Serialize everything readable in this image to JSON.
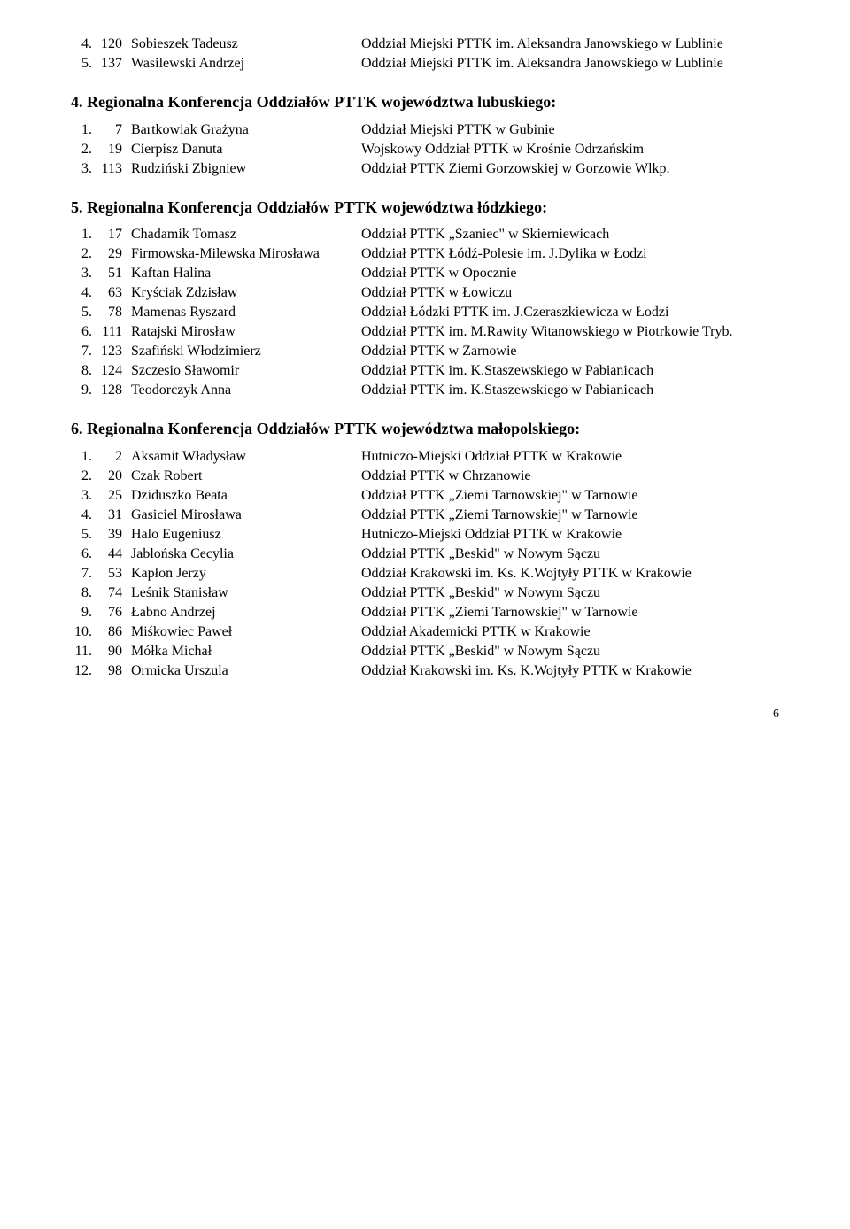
{
  "topEntries": [
    {
      "num": "4.",
      "id": "120",
      "name": "Sobieszek Tadeusz",
      "org": "Oddział Miejski PTTK im. Aleksandra Janowskiego w Lublinie"
    },
    {
      "num": "5.",
      "id": "137",
      "name": "Wasilewski Andrzej",
      "org": "Oddział Miejski PTTK im. Aleksandra Janowskiego w Lublinie"
    }
  ],
  "section4": {
    "heading": "4. Regionalna Konferencja Oddziałów PTTK województwa lubuskiego:",
    "entries": [
      {
        "num": "1.",
        "id": "7",
        "name": "Bartkowiak Grażyna",
        "org": "Oddział Miejski PTTK w Gubinie"
      },
      {
        "num": "2.",
        "id": "19",
        "name": "Cierpisz Danuta",
        "org": "Wojskowy Oddział PTTK w Krośnie Odrzańskim"
      },
      {
        "num": "3.",
        "id": "113",
        "name": "Rudziński Zbigniew",
        "org": "Oddział PTTK Ziemi Gorzowskiej w Gorzowie Wlkp."
      }
    ]
  },
  "section5": {
    "heading": "5. Regionalna Konferencja Oddziałów PTTK województwa łódzkiego:",
    "entries": [
      {
        "num": "1.",
        "id": "17",
        "name": "Chadamik Tomasz",
        "org": "Oddział PTTK „Szaniec\" w Skierniewicach"
      },
      {
        "num": "2.",
        "id": "29",
        "name": "Firmowska-Milewska Mirosława",
        "org": "Oddział PTTK Łódź-Polesie im. J.Dylika w Łodzi"
      },
      {
        "num": "3.",
        "id": "51",
        "name": "Kaftan Halina",
        "org": "Oddział PTTK w Opocznie"
      },
      {
        "num": "4.",
        "id": "63",
        "name": "Kryściak Zdzisław",
        "org": "Oddział PTTK w Łowiczu"
      },
      {
        "num": "5.",
        "id": "78",
        "name": "Mamenas Ryszard",
        "org": "Oddział Łódzki PTTK im. J.Czeraszkiewicza w Łodzi"
      },
      {
        "num": "6.",
        "id": "111",
        "name": "Ratajski Mirosław",
        "org": "Oddział PTTK im. M.Rawity Witanowskiego w Piotrkowie Tryb."
      },
      {
        "num": "7.",
        "id": "123",
        "name": "Szafiński Włodzimierz",
        "org": "Oddział PTTK w Żarnowie"
      },
      {
        "num": "8.",
        "id": "124",
        "name": "Szczesio Sławomir",
        "org": "Oddział PTTK im. K.Staszewskiego w Pabianicach"
      },
      {
        "num": "9.",
        "id": "128",
        "name": "Teodorczyk Anna",
        "org": "Oddział PTTK im. K.Staszewskiego w Pabianicach"
      }
    ]
  },
  "section6": {
    "heading": "6. Regionalna Konferencja Oddziałów PTTK województwa małopolskiego:",
    "entries": [
      {
        "num": "1.",
        "id": "2",
        "name": "Aksamit Władysław",
        "org": "Hutniczo-Miejski Oddział PTTK w Krakowie"
      },
      {
        "num": "2.",
        "id": "20",
        "name": "Czak Robert",
        "org": "Oddział PTTK w Chrzanowie"
      },
      {
        "num": "3.",
        "id": "25",
        "name": "Dziduszko Beata",
        "org": "Oddział PTTK „Ziemi Tarnowskiej\" w Tarnowie"
      },
      {
        "num": "4.",
        "id": "31",
        "name": "Gasiciel Mirosława",
        "org": "Oddział PTTK „Ziemi Tarnowskiej\" w Tarnowie"
      },
      {
        "num": "5.",
        "id": "39",
        "name": "Halo Eugeniusz",
        "org": "Hutniczo-Miejski Oddział PTTK w Krakowie"
      },
      {
        "num": "6.",
        "id": "44",
        "name": "Jabłońska Cecylia",
        "org": "Oddział PTTK „Beskid\" w Nowym Sączu"
      },
      {
        "num": "7.",
        "id": "53",
        "name": "Kapłon Jerzy",
        "org": "Oddział Krakowski im. Ks. K.Wojtyły PTTK w Krakowie"
      },
      {
        "num": "8.",
        "id": "74",
        "name": "Leśnik Stanisław",
        "org": "Oddział PTTK „Beskid\" w Nowym Sączu"
      },
      {
        "num": "9.",
        "id": "76",
        "name": "Łabno Andrzej",
        "org": "Oddział PTTK „Ziemi Tarnowskiej\" w Tarnowie"
      },
      {
        "num": "10.",
        "id": "86",
        "name": "Miśkowiec Paweł",
        "org": "Oddział Akademicki PTTK w Krakowie"
      },
      {
        "num": "11.",
        "id": "90",
        "name": "Mółka Michał",
        "org": "Oddział PTTK „Beskid\" w Nowym Sączu"
      },
      {
        "num": "12.",
        "id": "98",
        "name": "Ormicka Urszula",
        "org": "Oddział Krakowski im. Ks. K.Wojtyły PTTK w Krakowie"
      }
    ]
  },
  "pageNumber": "6"
}
